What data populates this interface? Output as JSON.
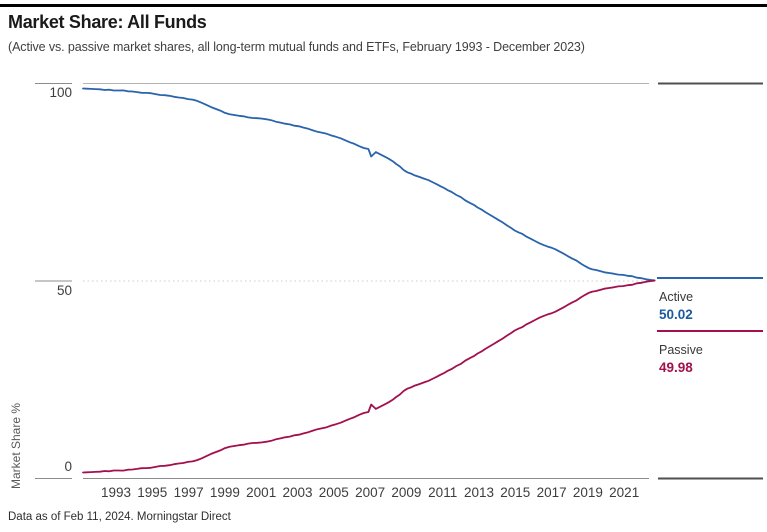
{
  "header": {
    "title": "Market Share: All Funds",
    "subtitle": "(Active vs. passive market shares, all long-term mutual funds and ETFs, February 1993 - December 2023)"
  },
  "legend": {
    "active_label": "Active",
    "active_value": "50.02",
    "passive_label": "Passive",
    "passive_value": "49.98"
  },
  "footer": {
    "text": "Data as of Feb 11, 2024. Morningstar Direct"
  },
  "colors": {
    "active_line": "#2a64ad",
    "passive_line": "#a3104d",
    "active_value_text": "#1c5a9e",
    "passive_value_text": "#a3104d",
    "grid_dotted": "#cccccc",
    "axis_gray": "#8c8c8c",
    "plot_border_light": "#b3b3b3",
    "right_border_dark": "#4f4f4f"
  },
  "chart_data": {
    "type": "line",
    "title": "Market Share: All Funds",
    "subtitle": "(Active vs. passive market shares, all long-term mutual funds and ETFs, February 1993 - December 2023)",
    "xlabel": "",
    "ylabel": "Market Share %",
    "ylim": [
      0,
      100
    ],
    "yticks": [
      "100",
      "50",
      "0"
    ],
    "xticks": [
      "1993",
      "1995",
      "1997",
      "1999",
      "2001",
      "2003",
      "2005",
      "2007",
      "2009",
      "2011",
      "2013",
      "2015",
      "2017",
      "2019",
      "2021"
    ],
    "grid": "dotted line at y=50 only",
    "legend_position": "right, outside plot, with series end values",
    "x_range_years": [
      1993.08,
      2023.96
    ],
    "x": [
      1993.08,
      1993.5,
      1994.0,
      1994.5,
      1995.0,
      1995.5,
      1996.0,
      1996.5,
      1997.0,
      1997.5,
      1998.0,
      1998.5,
      1999.0,
      1999.5,
      2000.0,
      2000.5,
      2001.0,
      2001.5,
      2002.0,
      2002.5,
      2003.0,
      2003.5,
      2004.0,
      2004.5,
      2005.0,
      2005.5,
      2006.0,
      2006.5,
      2007.0,
      2007.5,
      2008.0,
      2008.5,
      2008.65,
      2008.9,
      2009.2,
      2009.6,
      2010.0,
      2010.6,
      2011.0,
      2011.5,
      2012.0,
      2012.6,
      2013.0,
      2013.5,
      2014.0,
      2014.6,
      2015.0,
      2015.5,
      2016.0,
      2016.6,
      2017.0,
      2017.5,
      2018.0,
      2018.6,
      2019.0,
      2019.5,
      2020.0,
      2020.6,
      2021.0,
      2021.5,
      2022.0,
      2022.5,
      2023.0,
      2023.5,
      2023.96
    ],
    "series": [
      {
        "name": "Active",
        "color": "#2a64ad",
        "end_value": 50.02,
        "values": [
          98.6,
          98.5,
          98.4,
          98.3,
          98.1,
          97.9,
          97.7,
          97.5,
          97.2,
          96.9,
          96.5,
          96.2,
          95.8,
          95.0,
          93.9,
          93.0,
          92.1,
          91.7,
          91.3,
          91.1,
          90.8,
          90.2,
          89.7,
          89.2,
          88.7,
          88.0,
          87.4,
          86.7,
          86.0,
          85.0,
          84.0,
          83.3,
          81.4,
          82.5,
          81.8,
          80.8,
          79.5,
          77.4,
          76.6,
          75.8,
          74.8,
          73.4,
          72.4,
          71.1,
          69.6,
          68.0,
          66.8,
          65.4,
          63.9,
          62.2,
          61.2,
          60.0,
          58.9,
          57.9,
          56.9,
          55.6,
          54.2,
          52.8,
          52.4,
          51.9,
          51.5,
          51.2,
          50.7,
          50.3,
          50.02
        ]
      },
      {
        "name": "Passive",
        "color": "#a3104d",
        "end_value": 49.98,
        "values": [
          1.4,
          1.5,
          1.6,
          1.7,
          1.9,
          2.1,
          2.3,
          2.5,
          2.8,
          3.1,
          3.5,
          3.8,
          4.2,
          5.0,
          6.1,
          7.0,
          7.9,
          8.3,
          8.7,
          8.9,
          9.2,
          9.8,
          10.3,
          10.8,
          11.3,
          12.0,
          12.6,
          13.3,
          14.0,
          15.0,
          16.0,
          16.7,
          18.6,
          17.5,
          18.2,
          19.2,
          20.5,
          22.6,
          23.4,
          24.2,
          25.2,
          26.6,
          27.6,
          28.9,
          30.4,
          32.0,
          33.2,
          34.6,
          36.1,
          37.8,
          38.8,
          40.0,
          41.1,
          42.1,
          43.1,
          44.4,
          45.8,
          47.2,
          47.6,
          48.1,
          48.5,
          48.8,
          49.3,
          49.7,
          49.98
        ]
      }
    ]
  }
}
